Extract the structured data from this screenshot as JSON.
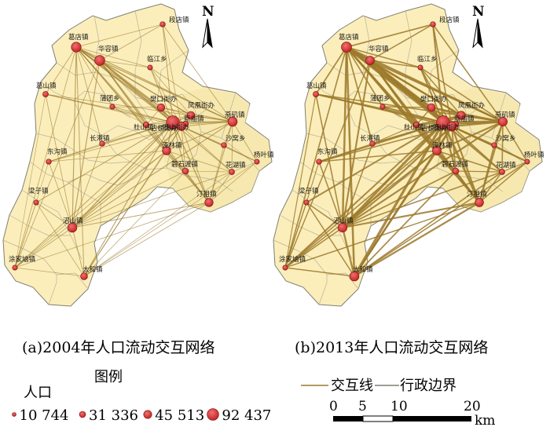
{
  "panels": [
    {
      "id": "a",
      "caption": "(a)2004年人口流动交互网络",
      "north": "N",
      "intensity": 1,
      "towns": [
        {
          "name": "段店镇",
          "pop": 12000
        },
        {
          "name": "葛店镇",
          "pop": 45513
        },
        {
          "name": "华容镇",
          "pop": 48000
        },
        {
          "name": "临江乡",
          "pop": 11000
        },
        {
          "name": "葛山镇",
          "pop": 13000
        },
        {
          "name": "蒲团乡",
          "pop": 11500
        },
        {
          "name": "樊口街办",
          "pop": 24000
        },
        {
          "name": "凤凰街办",
          "pop": 26000
        },
        {
          "name": "古楼街办",
          "pop": 92437
        },
        {
          "name": "新庙镇",
          "pop": 14000
        },
        {
          "name": "燕矶镇",
          "pop": 40000
        },
        {
          "name": "杜山镇",
          "pop": 14000
        },
        {
          "name": "西山街办",
          "pop": 31336
        },
        {
          "name": "长港镇",
          "pop": 12000
        },
        {
          "name": "泽林镇",
          "pop": 30000
        },
        {
          "name": "沙窝乡",
          "pop": 12000
        },
        {
          "name": "杨叶镇",
          "pop": 11000
        },
        {
          "name": "东沟镇",
          "pop": 12000
        },
        {
          "name": "碧石渡镇",
          "pop": 16000
        },
        {
          "name": "花湖镇",
          "pop": 13000
        },
        {
          "name": "汀祖镇",
          "pop": 30000
        },
        {
          "name": "梁子镇",
          "pop": 11000
        },
        {
          "name": "涂家垴镇",
          "pop": 11000
        },
        {
          "name": "沼山镇",
          "pop": 38000
        },
        {
          "name": "太和镇",
          "pop": 20000
        }
      ]
    },
    {
      "id": "b",
      "caption": "(b)2013年人口流动交互网络",
      "north": "N",
      "intensity": 2.3,
      "towns": [
        {
          "name": "段店镇",
          "pop": 12000
        },
        {
          "name": "葛店镇",
          "pop": 50000
        },
        {
          "name": "华容镇",
          "pop": 32000
        },
        {
          "name": "临江乡",
          "pop": 11000
        },
        {
          "name": "葛山镇",
          "pop": 13000
        },
        {
          "name": "蒲团乡",
          "pop": 11500
        },
        {
          "name": "樊口街办",
          "pop": 26000
        },
        {
          "name": "凤凰街办",
          "pop": 30000
        },
        {
          "name": "古楼街办",
          "pop": 92437
        },
        {
          "name": "新庙镇",
          "pop": 14000
        },
        {
          "name": "燕矶镇",
          "pop": 36000
        },
        {
          "name": "杜山镇",
          "pop": 14000
        },
        {
          "name": "西山街办",
          "pop": 40000
        },
        {
          "name": "长港镇",
          "pop": 12000
        },
        {
          "name": "泽林镇",
          "pop": 34000
        },
        {
          "name": "沙窝乡",
          "pop": 12000
        },
        {
          "name": "杨叶镇",
          "pop": 11000
        },
        {
          "name": "东沟镇",
          "pop": 12000
        },
        {
          "name": "碧石渡镇",
          "pop": 16000
        },
        {
          "name": "花湖镇",
          "pop": 13000
        },
        {
          "name": "汀祖镇",
          "pop": 32000
        },
        {
          "name": "梁子镇",
          "pop": 11000
        },
        {
          "name": "涂家垴镇",
          "pop": 11000
        },
        {
          "name": "沼山镇",
          "pop": 36000
        },
        {
          "name": "太和镇",
          "pop": 40000
        }
      ]
    }
  ],
  "legend": {
    "title": "图例",
    "population_label": "人口",
    "classes": [
      {
        "label": "10 744",
        "value": 10744
      },
      {
        "label": "31 336",
        "value": 31336
      },
      {
        "label": "45 513",
        "value": 45513
      },
      {
        "label": "92 437",
        "value": 92437
      }
    ],
    "interaction_line_label": "交互线",
    "boundary_label": "行政边界"
  },
  "scale_bar": {
    "ticks": [
      "0",
      "5",
      "10",
      "20"
    ],
    "unit": "km"
  },
  "colors": {
    "region_fill": "#fbeebb",
    "region_stroke": "#7f7f73",
    "district_stroke": "#b9b39a",
    "interaction_line": "#9c7a2c",
    "town_marker": "#cc2a2a",
    "town_marker_stroke": "#7d1010"
  }
}
